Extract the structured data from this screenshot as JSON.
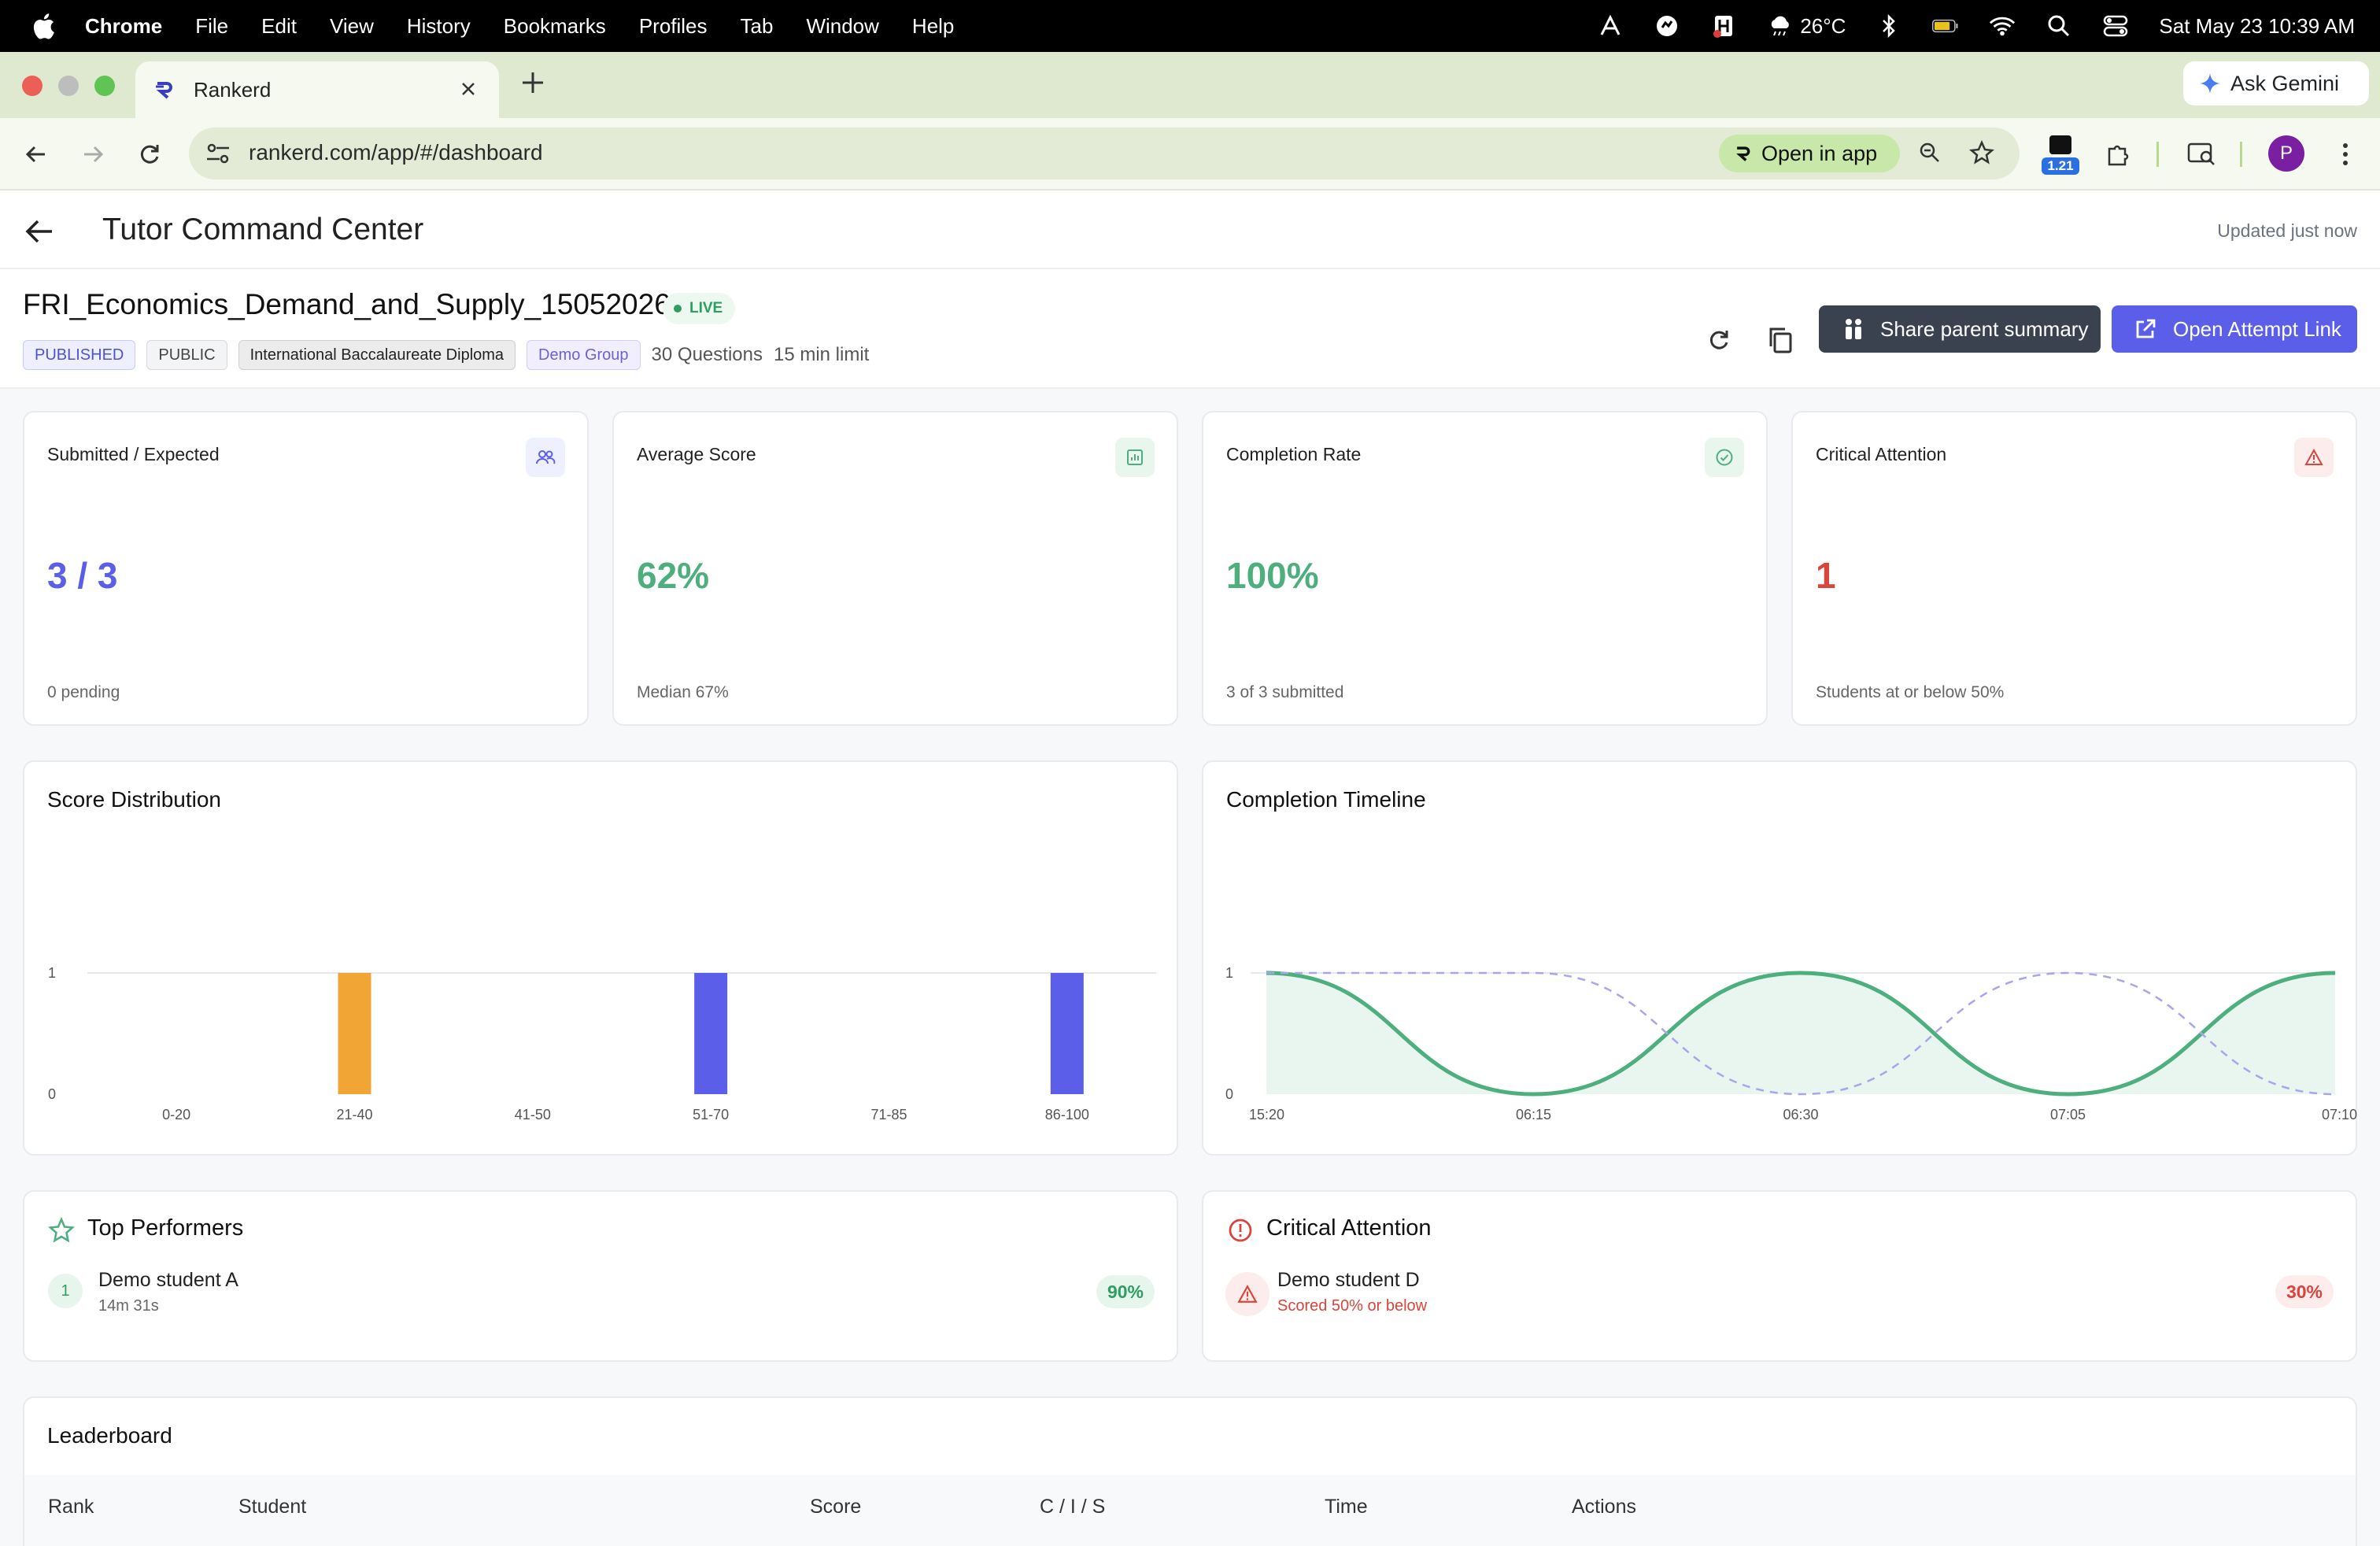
{
  "menubar": {
    "items": [
      "Chrome",
      "File",
      "Edit",
      "View",
      "History",
      "Bookmarks",
      "Profiles",
      "Tab",
      "Window",
      "Help"
    ],
    "weather": "26°C",
    "datetime": "Sat May 23  10:39 AM"
  },
  "browser": {
    "tab_title": "Rankerd",
    "url": "rankerd.com/app/#/dashboard",
    "open_in_app": "Open in app",
    "ask_gemini": "Ask Gemini",
    "extension_badge": "1.21",
    "profile_initial": "P"
  },
  "header": {
    "title": "Tutor Command Center",
    "updated": "Updated just now"
  },
  "assessment": {
    "title": "FRI_Economics_Demand_and_Supply_15052026",
    "status": "LIVE",
    "chips": [
      "PUBLISHED",
      "PUBLIC",
      "International Baccalaureate Diploma",
      "Demo Group"
    ],
    "questions": "30 Questions",
    "limit": "15 min limit",
    "share_label": "Share parent summary",
    "open_label": "Open Attempt Link"
  },
  "metrics": [
    {
      "label": "Submitted / Expected",
      "value": "3 / 3",
      "sub": "0 pending",
      "color": "#5b5ee8",
      "icon": "users-icon"
    },
    {
      "label": "Average Score",
      "value": "62%",
      "sub": "Median 67%",
      "color": "#4caf7d",
      "icon": "chart-icon"
    },
    {
      "label": "Completion Rate",
      "value": "100%",
      "sub": "3 of 3 submitted",
      "color": "#4caf7d",
      "icon": "check-circle-icon"
    },
    {
      "label": "Critical Attention",
      "value": "1",
      "sub": "Students at or below 50%",
      "color": "#d9443b",
      "icon": "warning-icon"
    }
  ],
  "score_distribution": {
    "title": "Score Distribution"
  },
  "completion_timeline": {
    "title": "Completion Timeline"
  },
  "chart_data": [
    {
      "type": "bar",
      "title": "Score Distribution",
      "categories": [
        "0-20",
        "21-40",
        "41-50",
        "51-70",
        "71-85",
        "86-100"
      ],
      "values": [
        0,
        1,
        0,
        1,
        0,
        1
      ],
      "colors": [
        "#5b5ee8",
        "#f0a534",
        "#5b5ee8",
        "#5b5ee8",
        "#5b5ee8",
        "#5b5ee8"
      ],
      "ylim": [
        0,
        1
      ],
      "yticks": [
        "0",
        "1"
      ],
      "grid": true
    },
    {
      "type": "line",
      "title": "Completion Timeline",
      "x": [
        "15:20",
        "06:15",
        "06:30",
        "07:05",
        "07:10"
      ],
      "series": [
        {
          "values": [
            1,
            0,
            1,
            0,
            1
          ],
          "color": "#4caf7d",
          "fill": true
        },
        {
          "values": [
            1,
            1,
            0,
            1,
            0
          ],
          "color": "#a9a4ef",
          "dashed": true
        }
      ],
      "ylim": [
        0,
        1
      ],
      "yticks": [
        "0",
        "1"
      ],
      "grid": true
    }
  ],
  "top_performers": {
    "title": "Top Performers",
    "items": [
      {
        "rank": "1",
        "name": "Demo student A",
        "sub": "14m 31s",
        "score": "90%"
      }
    ]
  },
  "critical": {
    "title": "Critical Attention",
    "items": [
      {
        "name": "Demo student D",
        "sub": "Scored 50% or below",
        "score": "30%"
      }
    ]
  },
  "leaderboard": {
    "title": "Leaderboard",
    "columns": [
      "Rank",
      "Student",
      "Score",
      "C / I / S",
      "Time",
      "Actions"
    ]
  }
}
